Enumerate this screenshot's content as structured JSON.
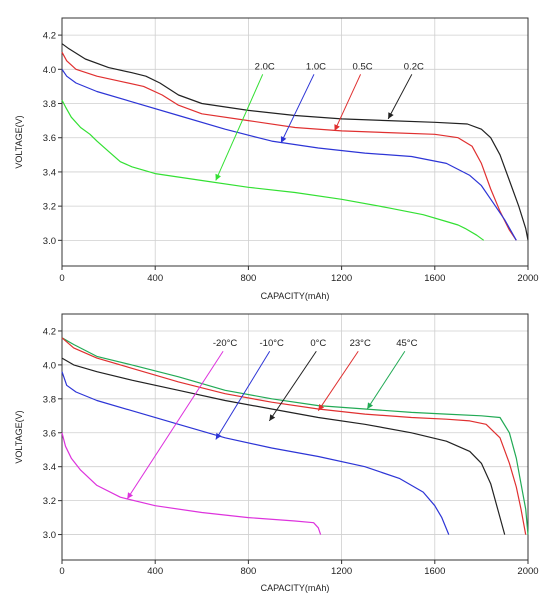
{
  "chart_data": [
    {
      "type": "line",
      "xlabel": "CAPACITY(mAh)",
      "ylabel": "VOLTAGE(V)",
      "xlim": [
        0,
        2000
      ],
      "ylim": [
        2.85,
        4.3
      ],
      "xticks": [
        0,
        400,
        800,
        1200,
        1600,
        2000
      ],
      "yticks": [
        3.0,
        3.2,
        3.4,
        3.6,
        3.8,
        4.0,
        4.2
      ],
      "grid": true,
      "legend": "none",
      "series": [
        {
          "name": "0.2C",
          "color": "#222222",
          "label_at": [
            1510,
            4.0
          ],
          "arrow_to": [
            1400,
            3.71
          ],
          "points": [
            [
              0,
              4.15
            ],
            [
              30,
              4.12
            ],
            [
              100,
              4.06
            ],
            [
              200,
              4.01
            ],
            [
              300,
              3.98
            ],
            [
              360,
              3.96
            ],
            [
              420,
              3.92
            ],
            [
              500,
              3.85
            ],
            [
              600,
              3.8
            ],
            [
              800,
              3.76
            ],
            [
              1000,
              3.73
            ],
            [
              1200,
              3.71
            ],
            [
              1400,
              3.7
            ],
            [
              1600,
              3.69
            ],
            [
              1740,
              3.68
            ],
            [
              1800,
              3.65
            ],
            [
              1840,
              3.6
            ],
            [
              1880,
              3.5
            ],
            [
              1920,
              3.35
            ],
            [
              1960,
              3.2
            ],
            [
              1990,
              3.07
            ],
            [
              2000,
              3.0
            ]
          ]
        },
        {
          "name": "0.5C",
          "color": "#e03030",
          "label_at": [
            1290,
            4.0
          ],
          "arrow_to": [
            1170,
            3.64
          ],
          "points": [
            [
              0,
              4.1
            ],
            [
              20,
              4.05
            ],
            [
              60,
              4.0
            ],
            [
              150,
              3.96
            ],
            [
              250,
              3.93
            ],
            [
              350,
              3.9
            ],
            [
              430,
              3.85
            ],
            [
              500,
              3.79
            ],
            [
              600,
              3.74
            ],
            [
              800,
              3.7
            ],
            [
              1000,
              3.66
            ],
            [
              1200,
              3.64
            ],
            [
              1400,
              3.63
            ],
            [
              1600,
              3.62
            ],
            [
              1700,
              3.6
            ],
            [
              1760,
              3.55
            ],
            [
              1800,
              3.45
            ],
            [
              1840,
              3.3
            ],
            [
              1880,
              3.17
            ],
            [
              1920,
              3.06
            ],
            [
              1950,
              3.0
            ]
          ]
        },
        {
          "name": "1.0C",
          "color": "#2d35d6",
          "label_at": [
            1090,
            4.0
          ],
          "arrow_to": [
            940,
            3.57
          ],
          "points": [
            [
              0,
              4.0
            ],
            [
              20,
              3.96
            ],
            [
              60,
              3.92
            ],
            [
              150,
              3.87
            ],
            [
              300,
              3.81
            ],
            [
              500,
              3.73
            ],
            [
              700,
              3.65
            ],
            [
              900,
              3.58
            ],
            [
              1100,
              3.54
            ],
            [
              1300,
              3.51
            ],
            [
              1500,
              3.49
            ],
            [
              1650,
              3.45
            ],
            [
              1750,
              3.38
            ],
            [
              1800,
              3.32
            ],
            [
              1850,
              3.22
            ],
            [
              1900,
              3.12
            ],
            [
              1950,
              3.0
            ]
          ]
        },
        {
          "name": "2.0C",
          "color": "#33e033",
          "label_at": [
            870,
            4.0
          ],
          "arrow_to": [
            660,
            3.35
          ],
          "points": [
            [
              0,
              3.82
            ],
            [
              15,
              3.78
            ],
            [
              40,
              3.72
            ],
            [
              80,
              3.66
            ],
            [
              120,
              3.62
            ],
            [
              150,
              3.58
            ],
            [
              200,
              3.52
            ],
            [
              250,
              3.46
            ],
            [
              300,
              3.43
            ],
            [
              400,
              3.39
            ],
            [
              600,
              3.35
            ],
            [
              800,
              3.31
            ],
            [
              1000,
              3.28
            ],
            [
              1200,
              3.24
            ],
            [
              1400,
              3.19
            ],
            [
              1550,
              3.15
            ],
            [
              1650,
              3.11
            ],
            [
              1700,
              3.09
            ],
            [
              1730,
              3.07
            ],
            [
              1780,
              3.03
            ],
            [
              1810,
              3.0
            ]
          ]
        }
      ]
    },
    {
      "type": "line",
      "xlabel": "CAPACITY(mAh)",
      "ylabel": "VOLTAGE(V)",
      "xlim": [
        0,
        2000
      ],
      "ylim": [
        2.85,
        4.3
      ],
      "xticks": [
        0,
        400,
        800,
        1200,
        1600,
        2000
      ],
      "yticks": [
        3.0,
        3.2,
        3.4,
        3.6,
        3.8,
        4.0,
        4.2
      ],
      "grid": true,
      "legend": "none",
      "series": [
        {
          "name": "45°C",
          "color": "#22aa55",
          "label_at": [
            1480,
            4.11
          ],
          "arrow_to": [
            1310,
            3.74
          ],
          "points": [
            [
              0,
              4.16
            ],
            [
              50,
              4.12
            ],
            [
              150,
              4.05
            ],
            [
              300,
              4.0
            ],
            [
              500,
              3.93
            ],
            [
              700,
              3.85
            ],
            [
              900,
              3.8
            ],
            [
              1100,
              3.76
            ],
            [
              1300,
              3.74
            ],
            [
              1500,
              3.72
            ],
            [
              1650,
              3.71
            ],
            [
              1800,
              3.7
            ],
            [
              1880,
              3.69
            ],
            [
              1920,
              3.6
            ],
            [
              1950,
              3.45
            ],
            [
              1970,
              3.3
            ],
            [
              1990,
              3.15
            ],
            [
              2000,
              3.0
            ]
          ]
        },
        {
          "name": "23°C",
          "color": "#e03030",
          "label_at": [
            1280,
            4.11
          ],
          "arrow_to": [
            1100,
            3.73
          ],
          "points": [
            [
              0,
              4.16
            ],
            [
              50,
              4.1
            ],
            [
              150,
              4.04
            ],
            [
              300,
              3.98
            ],
            [
              500,
              3.9
            ],
            [
              700,
              3.83
            ],
            [
              900,
              3.78
            ],
            [
              1100,
              3.74
            ],
            [
              1300,
              3.71
            ],
            [
              1500,
              3.69
            ],
            [
              1650,
              3.68
            ],
            [
              1750,
              3.67
            ],
            [
              1820,
              3.65
            ],
            [
              1880,
              3.57
            ],
            [
              1920,
              3.42
            ],
            [
              1950,
              3.28
            ],
            [
              1970,
              3.15
            ],
            [
              1990,
              3.0
            ]
          ]
        },
        {
          "name": "0°C",
          "color": "#222222",
          "label_at": [
            1100,
            4.11
          ],
          "arrow_to": [
            890,
            3.67
          ],
          "points": [
            [
              0,
              4.04
            ],
            [
              50,
              4.0
            ],
            [
              150,
              3.96
            ],
            [
              300,
              3.91
            ],
            [
              500,
              3.85
            ],
            [
              700,
              3.79
            ],
            [
              900,
              3.74
            ],
            [
              1100,
              3.69
            ],
            [
              1300,
              3.65
            ],
            [
              1500,
              3.6
            ],
            [
              1650,
              3.55
            ],
            [
              1750,
              3.49
            ],
            [
              1800,
              3.42
            ],
            [
              1840,
              3.3
            ],
            [
              1870,
              3.15
            ],
            [
              1900,
              3.0
            ]
          ]
        },
        {
          "name": "-10°C",
          "color": "#2d35d6",
          "label_at": [
            900,
            4.11
          ],
          "arrow_to": [
            660,
            3.56
          ],
          "points": [
            [
              0,
              3.96
            ],
            [
              20,
              3.88
            ],
            [
              60,
              3.84
            ],
            [
              150,
              3.79
            ],
            [
              300,
              3.73
            ],
            [
              500,
              3.65
            ],
            [
              700,
              3.57
            ],
            [
              900,
              3.51
            ],
            [
              1100,
              3.46
            ],
            [
              1300,
              3.4
            ],
            [
              1450,
              3.33
            ],
            [
              1550,
              3.25
            ],
            [
              1600,
              3.17
            ],
            [
              1630,
              3.1
            ],
            [
              1660,
              3.0
            ]
          ]
        },
        {
          "name": "-20°C",
          "color": "#dd33dd",
          "label_at": [
            700,
            4.11
          ],
          "arrow_to": [
            280,
            3.21
          ],
          "points": [
            [
              0,
              3.6
            ],
            [
              15,
              3.52
            ],
            [
              40,
              3.45
            ],
            [
              80,
              3.38
            ],
            [
              150,
              3.29
            ],
            [
              250,
              3.22
            ],
            [
              400,
              3.17
            ],
            [
              600,
              3.13
            ],
            [
              800,
              3.1
            ],
            [
              1000,
              3.08
            ],
            [
              1080,
              3.07
            ],
            [
              1100,
              3.04
            ],
            [
              1110,
              3.0
            ]
          ]
        }
      ]
    }
  ]
}
